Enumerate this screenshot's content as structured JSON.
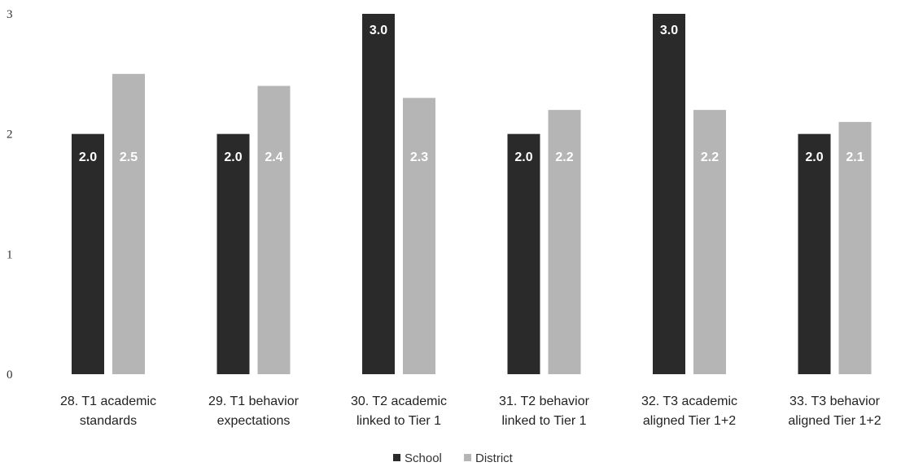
{
  "chart_data": {
    "type": "bar",
    "categories": [
      [
        "28. T1 academic",
        "standards"
      ],
      [
        "29. T1 behavior",
        "expectations"
      ],
      [
        "30. T2 academic",
        "linked to Tier 1"
      ],
      [
        "31. T2 behavior",
        "linked to Tier 1"
      ],
      [
        "32. T3 academic",
        "aligned Tier 1+2"
      ],
      [
        "33. T3 behavior",
        "aligned Tier 1+2"
      ]
    ],
    "series": [
      {
        "name": "School",
        "color": "#2a2a2a",
        "values": [
          2.0,
          2.0,
          3.0,
          2.0,
          3.0,
          2.0
        ],
        "labels": [
          "2.0",
          "2.0",
          "3.0",
          "2.0",
          "3.0",
          "2.0"
        ]
      },
      {
        "name": "District",
        "color": "#b5b5b5",
        "values": [
          2.5,
          2.4,
          2.3,
          2.2,
          2.2,
          2.1
        ],
        "labels": [
          "2.5",
          "2.4",
          "2.3",
          "2.2",
          "2.2",
          "2.1"
        ]
      }
    ],
    "yticks": [
      "0",
      "1",
      "2",
      "3"
    ],
    "ylim": [
      0,
      3
    ],
    "grid": false,
    "legend": "bottom-center"
  }
}
